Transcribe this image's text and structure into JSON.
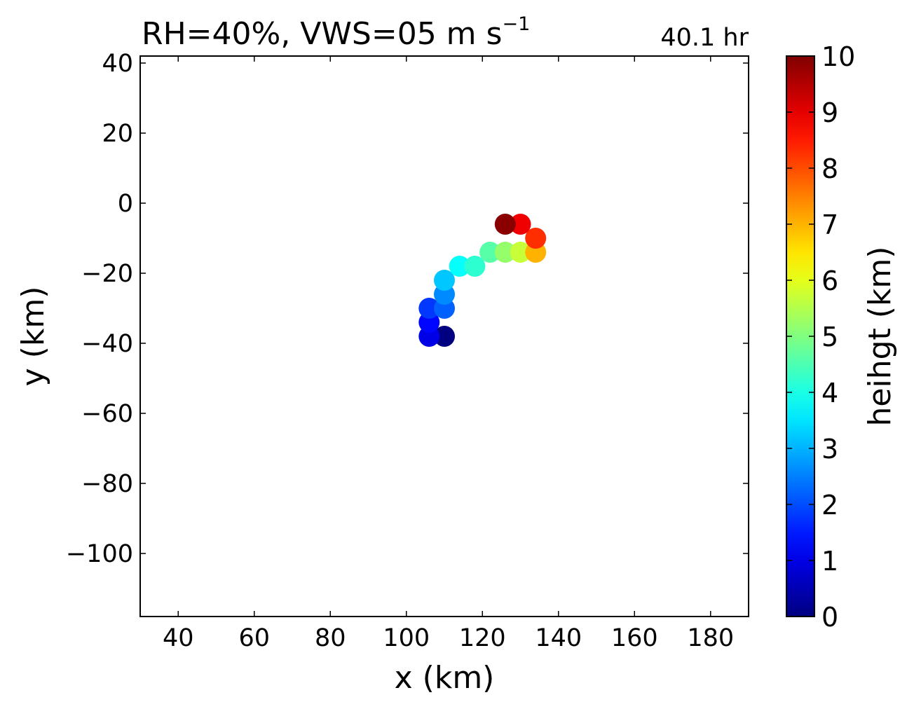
{
  "chart_data": {
    "type": "scatter",
    "title_prefix": "RH=40%, VWS=05 m s",
    "title_exponent": "−1",
    "time_label": "40.1 hr",
    "time_label_color": "#0000ff",
    "xlabel": "x (km)",
    "ylabel": "y (km)",
    "xlim": [
      30,
      190
    ],
    "ylim": [
      -118,
      42
    ],
    "xticks": [
      40,
      60,
      80,
      100,
      120,
      140,
      160,
      180
    ],
    "yticks": [
      40,
      20,
      0,
      -20,
      -40,
      -60,
      -80,
      -100
    ],
    "colorbar": {
      "label": "heihgt (km)",
      "range": [
        0,
        10
      ],
      "ticks": [
        0,
        1,
        2,
        3,
        4,
        5,
        6,
        7,
        8,
        9,
        10
      ],
      "colormap": "jet"
    },
    "points": [
      {
        "x": 110,
        "y": -38,
        "height": 0.0
      },
      {
        "x": 106,
        "y": -38,
        "height": 1.0
      },
      {
        "x": 106,
        "y": -34,
        "height": 1.3
      },
      {
        "x": 106,
        "y": -30,
        "height": 1.8
      },
      {
        "x": 110,
        "y": -30,
        "height": 2.2
      },
      {
        "x": 110,
        "y": -26,
        "height": 2.6
      },
      {
        "x": 110,
        "y": -22,
        "height": 3.2
      },
      {
        "x": 114,
        "y": -18,
        "height": 3.8
      },
      {
        "x": 118,
        "y": -18,
        "height": 4.2
      },
      {
        "x": 122,
        "y": -14,
        "height": 4.6
      },
      {
        "x": 126,
        "y": -14,
        "height": 5.2
      },
      {
        "x": 130,
        "y": -14,
        "height": 5.7
      },
      {
        "x": 134,
        "y": -14,
        "height": 7.0
      },
      {
        "x": 134,
        "y": -10,
        "height": 8.3
      },
      {
        "x": 130,
        "y": -6,
        "height": 8.9
      },
      {
        "x": 126,
        "y": -6,
        "height": 9.9
      }
    ]
  }
}
